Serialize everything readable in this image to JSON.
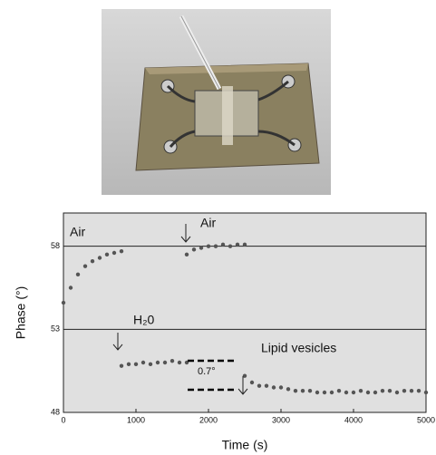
{
  "chart_data": {
    "type": "scatter",
    "xlabel": "Time (s)",
    "ylabel": "Phase (°)",
    "xlim": [
      0,
      5000
    ],
    "ylim": [
      48,
      60
    ],
    "xticks": [
      0,
      1000,
      2000,
      3000,
      4000,
      5000
    ],
    "yticks": [
      48,
      53,
      58
    ],
    "grid": true,
    "annotations": [
      "Air",
      "Air",
      "H₂0",
      "Lipid vesicles",
      "0.7°"
    ],
    "series": [
      {
        "color": "#555555",
        "x": [
          0,
          100,
          200,
          300,
          400,
          500,
          600,
          700,
          800
        ],
        "values": [
          54.6,
          55.5,
          56.3,
          56.8,
          57.1,
          57.3,
          57.5,
          57.6,
          57.7
        ]
      },
      {
        "color": "#555555",
        "x": [
          800,
          900,
          1000,
          1100,
          1200,
          1300,
          1400,
          1500,
          1600,
          1700
        ],
        "values": [
          50.8,
          50.9,
          50.9,
          51.0,
          50.9,
          51.0,
          51.0,
          51.1,
          51.0,
          51.0
        ]
      },
      {
        "color": "#555555",
        "x": [
          1700,
          1800,
          1900,
          2000,
          2100,
          2200,
          2300,
          2400,
          2500
        ],
        "values": [
          57.5,
          57.8,
          57.9,
          58.0,
          58.0,
          58.1,
          58.0,
          58.1,
          58.1
        ]
      },
      {
        "color": "#555555",
        "x": [
          2500,
          2600,
          2700,
          2800,
          2900,
          3000,
          3100,
          3200,
          3300,
          3400,
          3500,
          3600,
          3700,
          3800,
          3900,
          4000,
          4100,
          4200,
          4300,
          4400,
          4500,
          4600,
          4700,
          4800,
          4900,
          5000
        ],
        "values": [
          50.2,
          49.8,
          49.6,
          49.6,
          49.5,
          49.5,
          49.4,
          49.3,
          49.3,
          49.3,
          49.2,
          49.2,
          49.2,
          49.3,
          49.2,
          49.2,
          49.3,
          49.2,
          49.2,
          49.3,
          49.3,
          49.2,
          49.3,
          49.3,
          49.3,
          49.2
        ]
      }
    ]
  }
}
